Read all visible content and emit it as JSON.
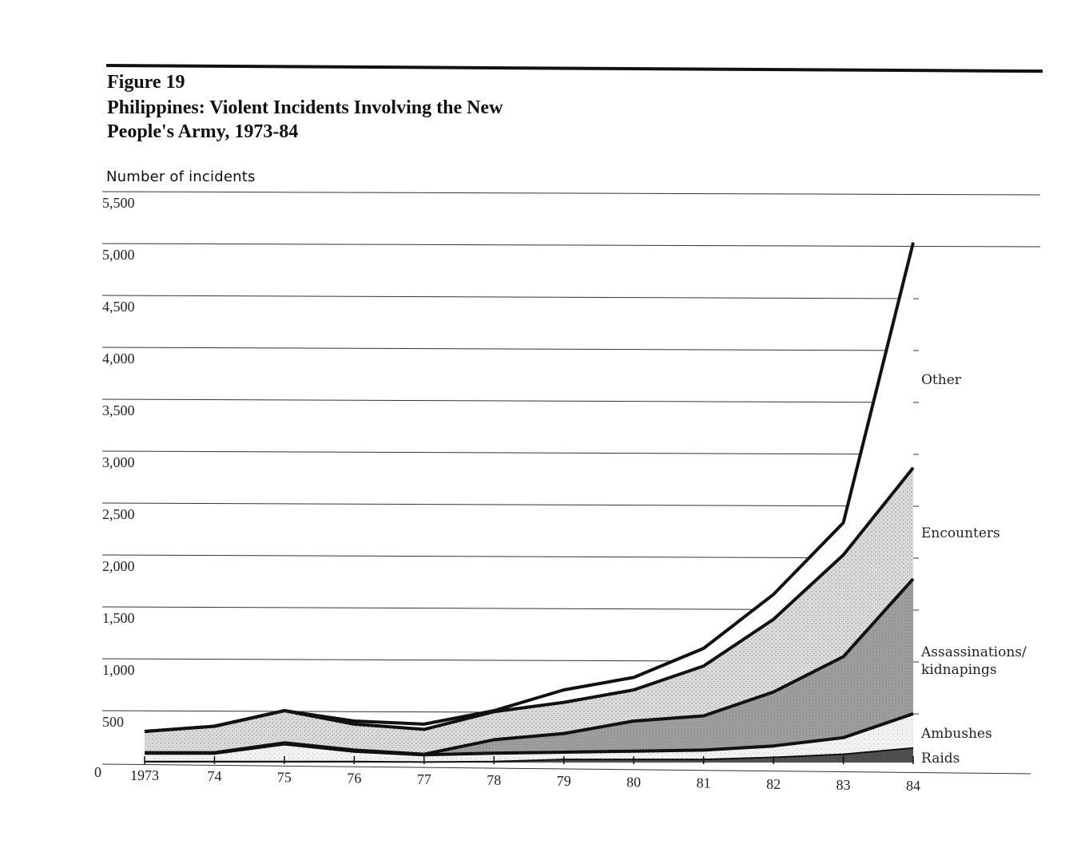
{
  "figure": {
    "label": "Figure 19",
    "title": "Philippines: Violent Incidents Involving the New People's Army, 1973-84"
  },
  "chart_data": {
    "type": "area",
    "stacked": true,
    "title": "Philippines: Violent Incidents Involving the New People's Army, 1973-84",
    "xlabel": "",
    "ylabel": "Number of incidents",
    "categories": [
      "1973",
      "74",
      "75",
      "76",
      "77",
      "78",
      "79",
      "80",
      "81",
      "82",
      "83",
      "84"
    ],
    "ylim": [
      0,
      5500
    ],
    "yticks": [
      0,
      500,
      1000,
      1500,
      2000,
      2500,
      3000,
      3500,
      4000,
      4500,
      5000,
      5500
    ],
    "ytick_labels": [
      "0",
      "500",
      "1,000",
      "1,500",
      "2,000",
      "2,500",
      "3,000",
      "3,500",
      "4,000",
      "4,500",
      "5,000",
      "5,500"
    ],
    "grid": true,
    "legend": "labels at right end of each band",
    "series": [
      {
        "name": "Raids",
        "values": [
          10,
          10,
          10,
          10,
          5,
          10,
          30,
          30,
          30,
          50,
          80,
          140
        ],
        "fill": "#4a4a4a"
      },
      {
        "name": "Ambushes",
        "values": [
          80,
          80,
          170,
          100,
          70,
          80,
          70,
          80,
          90,
          110,
          160,
          330
        ],
        "fill": "#cfcfcf"
      },
      {
        "name": "Assassinations/ kidnapings",
        "values": [
          5,
          5,
          10,
          10,
          5,
          130,
          180,
          290,
          330,
          520,
          780,
          1300
        ],
        "fill": "#9a9a9a"
      },
      {
        "name": "Encounters",
        "values": [
          205,
          255,
          310,
          250,
          240,
          270,
          300,
          300,
          480,
          700,
          980,
          1070
        ],
        "fill": "#ebebeb"
      },
      {
        "name": "Other",
        "values": [
          0,
          0,
          0,
          30,
          50,
          10,
          120,
          120,
          170,
          240,
          310,
          2170
        ],
        "fill": "#ffffff"
      }
    ]
  }
}
